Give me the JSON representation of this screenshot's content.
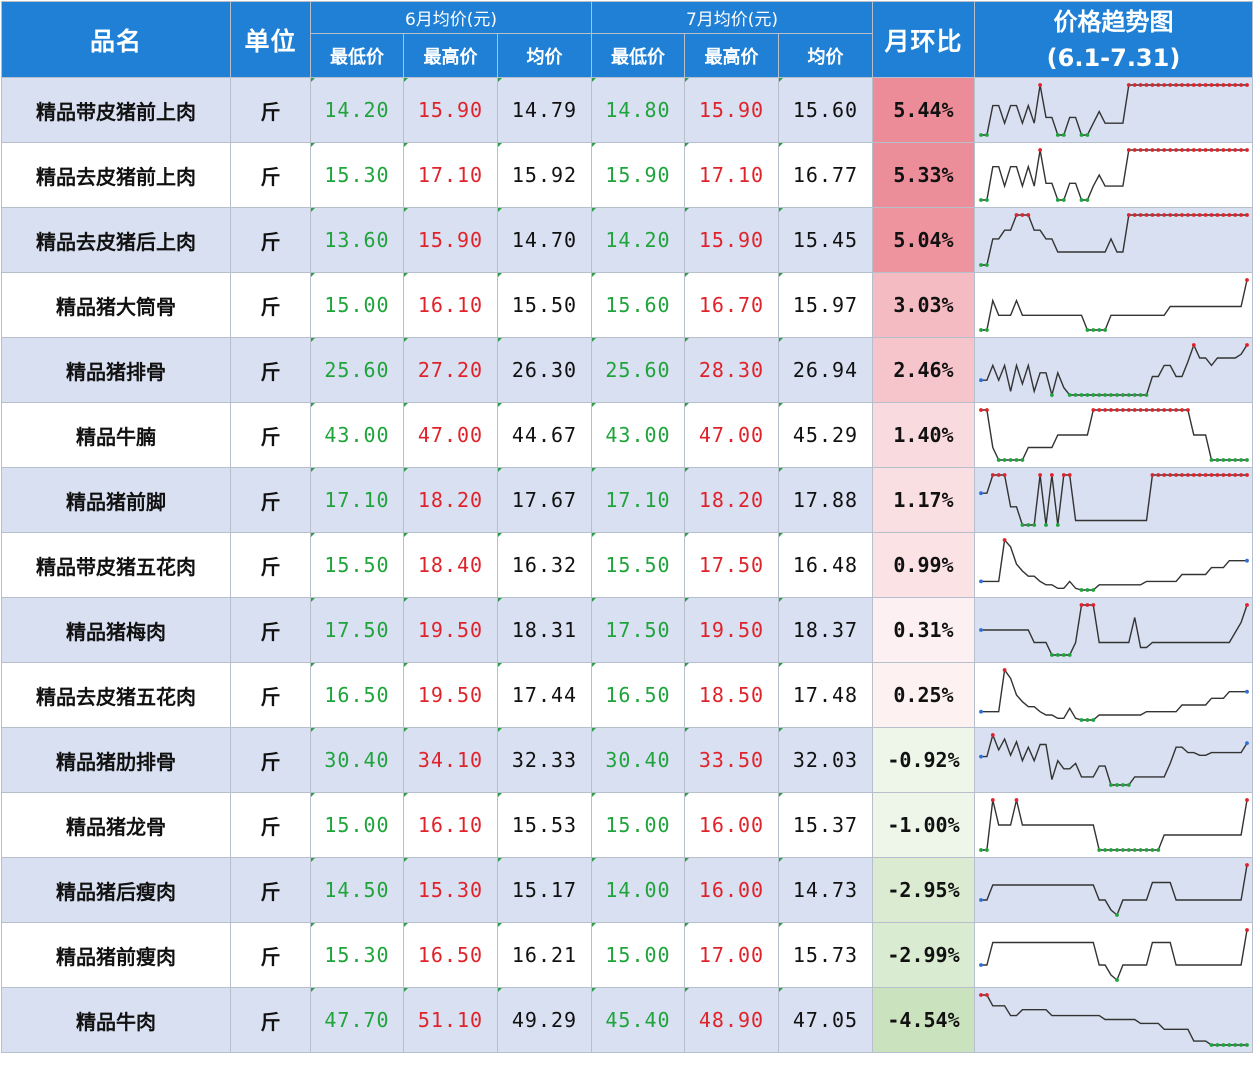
{
  "header": {
    "name": "品名",
    "unit": "单位",
    "june": "6月均价(元)",
    "july": "7月均价(元)",
    "mom": "月环比",
    "trend_line1": "价格趋势图",
    "trend_line2": "(6.1-7.31)",
    "min": "最低价",
    "max": "最高价",
    "avg": "均价"
  },
  "colors": {
    "header_bg": "#1f80d6",
    "low": "#1fa43c",
    "high": "#e0232b",
    "row_band": "#d9e0f1",
    "pos": "#f3a7b0",
    "neg": "#dcebd6"
  },
  "rows": [
    {
      "name": "精品带皮猪前上肉",
      "unit": "斤",
      "jun_min": "14.20",
      "jun_max": "15.90",
      "jun_avg": "14.79",
      "jul_min": "14.80",
      "jul_max": "15.90",
      "jul_avg": "15.60",
      "mom": "5.44%",
      "mom_value": 5.44,
      "trend": [
        14.2,
        14.2,
        15.2,
        15.2,
        14.6,
        15.2,
        15.2,
        14.6,
        15.2,
        14.6,
        15.9,
        14.8,
        14.8,
        14.2,
        14.2,
        14.8,
        14.8,
        14.2,
        14.2,
        14.6,
        15.0,
        14.6,
        14.6,
        14.6,
        14.6,
        15.9,
        15.9,
        15.9,
        15.9,
        15.9,
        15.9,
        15.9,
        15.9,
        15.9,
        15.9,
        15.9,
        15.9,
        15.9,
        15.9,
        15.9,
        15.9,
        15.9,
        15.9,
        15.9,
        15.9,
        15.9
      ]
    },
    {
      "name": "精品去皮猪前上肉",
      "unit": "斤",
      "jun_min": "15.30",
      "jun_max": "17.10",
      "jun_avg": "15.92",
      "jul_min": "15.90",
      "jul_max": "17.10",
      "jul_avg": "16.77",
      "mom": "5.33%",
      "mom_value": 5.33,
      "trend": [
        15.3,
        15.3,
        16.5,
        16.5,
        15.8,
        16.5,
        16.5,
        15.8,
        16.5,
        15.8,
        17.1,
        15.9,
        15.9,
        15.3,
        15.3,
        15.9,
        15.9,
        15.3,
        15.3,
        15.8,
        16.2,
        15.8,
        15.8,
        15.8,
        15.8,
        17.1,
        17.1,
        17.1,
        17.1,
        17.1,
        17.1,
        17.1,
        17.1,
        17.1,
        17.1,
        17.1,
        17.1,
        17.1,
        17.1,
        17.1,
        17.1,
        17.1,
        17.1,
        17.1,
        17.1,
        17.1
      ]
    },
    {
      "name": "精品去皮猪后上肉",
      "unit": "斤",
      "jun_min": "13.60",
      "jun_max": "15.90",
      "jun_avg": "14.70",
      "jul_min": "14.20",
      "jul_max": "15.90",
      "jul_avg": "15.45",
      "mom": "5.04%",
      "mom_value": 5.04,
      "trend": [
        13.6,
        13.6,
        14.8,
        14.8,
        15.2,
        15.2,
        15.9,
        15.9,
        15.9,
        15.2,
        15.2,
        14.8,
        14.8,
        14.2,
        14.2,
        14.2,
        14.2,
        14.2,
        14.2,
        14.2,
        14.2,
        14.2,
        14.8,
        14.2,
        14.2,
        15.9,
        15.9,
        15.9,
        15.9,
        15.9,
        15.9,
        15.9,
        15.9,
        15.9,
        15.9,
        15.9,
        15.9,
        15.9,
        15.9,
        15.9,
        15.9,
        15.9,
        15.9,
        15.9,
        15.9,
        15.9
      ]
    },
    {
      "name": "精品猪大筒骨",
      "unit": "斤",
      "jun_min": "15.00",
      "jun_max": "16.10",
      "jun_avg": "15.50",
      "jul_min": "15.60",
      "jul_max": "16.70",
      "jul_avg": "15.97",
      "mom": "3.03%",
      "mom_value": 3.03,
      "trend": [
        15.0,
        15.0,
        16.0,
        15.5,
        15.5,
        15.5,
        16.0,
        15.5,
        15.5,
        15.5,
        15.5,
        15.5,
        15.5,
        15.5,
        15.5,
        15.5,
        15.5,
        15.5,
        15.0,
        15.0,
        15.0,
        15.0,
        15.5,
        15.5,
        15.5,
        15.5,
        15.5,
        15.5,
        15.5,
        15.5,
        15.5,
        15.5,
        15.8,
        15.8,
        15.8,
        15.8,
        15.8,
        15.8,
        15.8,
        15.8,
        15.8,
        15.8,
        15.8,
        15.8,
        15.8,
        16.7
      ]
    },
    {
      "name": "精品猪排骨",
      "unit": "斤",
      "jun_min": "25.60",
      "jun_max": "27.20",
      "jun_avg": "26.30",
      "jul_min": "25.60",
      "jul_max": "28.30",
      "jul_avg": "26.94",
      "mom": "2.46%",
      "mom_value": 2.46,
      "trend": [
        26.4,
        26.4,
        27.2,
        26.4,
        27.2,
        25.8,
        27.2,
        26.2,
        27.2,
        25.8,
        26.8,
        26.8,
        25.6,
        26.8,
        26.0,
        25.6,
        25.6,
        25.6,
        25.6,
        25.6,
        25.6,
        25.6,
        25.6,
        25.6,
        25.6,
        25.6,
        25.6,
        25.6,
        25.6,
        26.6,
        26.6,
        27.2,
        27.2,
        26.6,
        26.6,
        27.4,
        28.3,
        27.6,
        27.6,
        27.2,
        27.6,
        27.6,
        27.6,
        27.6,
        27.8,
        28.3
      ]
    },
    {
      "name": "精品牛腩",
      "unit": "斤",
      "jun_min": "43.00",
      "jun_max": "47.00",
      "jun_avg": "44.67",
      "jul_min": "43.00",
      "jul_max": "47.00",
      "jul_avg": "45.29",
      "mom": "1.40%",
      "mom_value": 1.4,
      "trend": [
        47.0,
        47.0,
        44.0,
        43.0,
        43.0,
        43.0,
        43.0,
        43.0,
        44.0,
        44.0,
        44.0,
        44.0,
        44.0,
        45.0,
        45.0,
        45.0,
        45.0,
        45.0,
        45.0,
        47.0,
        47.0,
        47.0,
        47.0,
        47.0,
        47.0,
        47.0,
        47.0,
        47.0,
        47.0,
        47.0,
        47.0,
        47.0,
        47.0,
        47.0,
        47.0,
        47.0,
        45.0,
        45.0,
        45.0,
        43.0,
        43.0,
        43.0,
        43.0,
        43.0,
        43.0,
        43.0
      ]
    },
    {
      "name": "精品猪前脚",
      "unit": "斤",
      "jun_min": "17.10",
      "jun_max": "18.20",
      "jun_avg": "17.67",
      "jul_min": "17.10",
      "jul_max": "18.20",
      "jul_avg": "17.88",
      "mom": "1.17%",
      "mom_value": 1.17,
      "trend": [
        17.8,
        17.8,
        18.2,
        18.2,
        18.2,
        17.5,
        17.5,
        17.1,
        17.1,
        17.1,
        18.2,
        17.1,
        18.2,
        17.1,
        18.2,
        18.2,
        17.2,
        17.2,
        17.2,
        17.2,
        17.2,
        17.2,
        17.2,
        17.2,
        17.2,
        17.2,
        17.2,
        17.2,
        17.2,
        18.2,
        18.2,
        18.2,
        18.2,
        18.2,
        18.2,
        18.2,
        18.2,
        18.2,
        18.2,
        18.2,
        18.2,
        18.2,
        18.2,
        18.2,
        18.2,
        18.2
      ]
    },
    {
      "name": "精品带皮猪五花肉",
      "unit": "斤",
      "jun_min": "15.50",
      "jun_max": "18.40",
      "jun_avg": "16.32",
      "jul_min": "15.50",
      "jul_max": "17.50",
      "jul_avg": "16.48",
      "mom": "0.99%",
      "mom_value": 0.99,
      "trend": [
        16.0,
        16.0,
        16.0,
        16.0,
        18.4,
        18.0,
        17.0,
        16.6,
        16.3,
        16.3,
        16.0,
        15.8,
        15.8,
        15.6,
        15.6,
        16.0,
        15.6,
        15.5,
        15.5,
        15.5,
        15.8,
        15.8,
        15.8,
        15.8,
        15.8,
        15.8,
        15.8,
        15.8,
        16.0,
        16.0,
        16.0,
        16.0,
        16.0,
        16.0,
        16.4,
        16.4,
        16.4,
        16.4,
        16.4,
        16.8,
        16.8,
        16.8,
        17.2,
        17.2,
        17.2,
        17.2
      ]
    },
    {
      "name": "精品猪梅肉",
      "unit": "斤",
      "jun_min": "17.50",
      "jun_max": "19.50",
      "jun_avg": "18.31",
      "jul_min": "17.50",
      "jul_max": "19.50",
      "jul_avg": "18.37",
      "mom": "0.31%",
      "mom_value": 0.31,
      "trend": [
        18.5,
        18.5,
        18.5,
        18.5,
        18.5,
        18.5,
        18.5,
        18.5,
        18.5,
        18.0,
        18.0,
        18.0,
        17.5,
        17.5,
        17.5,
        17.5,
        18.0,
        19.5,
        19.5,
        19.5,
        18.0,
        18.0,
        18.0,
        18.0,
        18.0,
        18.0,
        19.0,
        17.8,
        17.8,
        18.0,
        18.0,
        18.0,
        18.0,
        18.0,
        18.0,
        18.0,
        18.0,
        18.0,
        18.0,
        18.0,
        18.0,
        18.0,
        18.0,
        18.4,
        18.8,
        19.5
      ]
    },
    {
      "name": "精品去皮猪五花肉",
      "unit": "斤",
      "jun_min": "16.50",
      "jun_max": "19.50",
      "jun_avg": "17.44",
      "jul_min": "16.50",
      "jul_max": "18.50",
      "jul_avg": "17.48",
      "mom": "0.25%",
      "mom_value": 0.25,
      "trend": [
        17.0,
        17.0,
        17.0,
        17.0,
        19.5,
        19.0,
        18.0,
        17.6,
        17.3,
        17.3,
        17.0,
        16.8,
        16.8,
        16.6,
        16.6,
        17.2,
        16.6,
        16.5,
        16.5,
        16.5,
        16.8,
        16.8,
        16.8,
        16.8,
        16.8,
        16.8,
        16.8,
        16.8,
        17.0,
        17.0,
        17.0,
        17.0,
        17.0,
        17.0,
        17.4,
        17.4,
        17.4,
        17.4,
        17.4,
        17.8,
        17.8,
        17.8,
        18.2,
        18.2,
        18.2,
        18.2
      ]
    },
    {
      "name": "精品猪肋排骨",
      "unit": "斤",
      "jun_min": "30.40",
      "jun_max": "34.10",
      "jun_avg": "32.33",
      "jul_min": "30.40",
      "jul_max": "33.50",
      "jul_avg": "32.03",
      "mom": "-0.92%",
      "mom_value": -0.92,
      "trend": [
        32.5,
        32.5,
        34.1,
        33.0,
        33.8,
        32.6,
        33.6,
        32.2,
        33.2,
        32.2,
        33.4,
        33.4,
        30.8,
        32.2,
        31.6,
        31.6,
        32.0,
        31.0,
        31.0,
        31.0,
        31.8,
        31.8,
        30.4,
        30.4,
        30.4,
        30.4,
        31.0,
        31.0,
        31.0,
        31.0,
        31.0,
        31.0,
        32.0,
        33.2,
        33.2,
        32.8,
        32.8,
        32.6,
        32.6,
        32.8,
        32.8,
        32.8,
        32.8,
        32.8,
        32.8,
        33.5
      ]
    },
    {
      "name": "精品猪龙骨",
      "unit": "斤",
      "jun_min": "15.00",
      "jun_max": "16.10",
      "jun_avg": "15.53",
      "jul_min": "15.00",
      "jul_max": "16.00",
      "jul_avg": "15.37",
      "mom": "-1.00%",
      "mom_value": -1.0,
      "trend": [
        15.0,
        15.0,
        16.0,
        15.5,
        15.5,
        15.5,
        16.0,
        15.5,
        15.5,
        15.5,
        15.5,
        15.5,
        15.5,
        15.5,
        15.5,
        15.5,
        15.5,
        15.5,
        15.5,
        15.5,
        15.0,
        15.0,
        15.0,
        15.0,
        15.0,
        15.0,
        15.0,
        15.0,
        15.0,
        15.0,
        15.0,
        15.3,
        15.3,
        15.3,
        15.3,
        15.3,
        15.3,
        15.3,
        15.3,
        15.3,
        15.3,
        15.3,
        15.3,
        15.3,
        15.3,
        16.0
      ]
    },
    {
      "name": "精品猪后瘦肉",
      "unit": "斤",
      "jun_min": "14.50",
      "jun_max": "15.30",
      "jun_avg": "15.17",
      "jul_min": "14.00",
      "jul_max": "16.00",
      "jul_avg": "14.73",
      "mom": "-2.95%",
      "mom_value": -2.95,
      "trend": [
        14.6,
        14.6,
        15.2,
        15.2,
        15.2,
        15.2,
        15.2,
        15.2,
        15.2,
        15.2,
        15.2,
        15.2,
        15.2,
        15.2,
        15.2,
        15.2,
        15.2,
        15.2,
        15.2,
        15.2,
        14.6,
        14.6,
        14.2,
        14.0,
        14.6,
        14.6,
        14.6,
        14.6,
        14.6,
        15.3,
        15.3,
        15.3,
        15.3,
        14.6,
        14.6,
        14.6,
        14.6,
        14.6,
        14.6,
        14.6,
        14.6,
        14.6,
        14.6,
        14.6,
        14.6,
        16.0
      ]
    },
    {
      "name": "精品猪前瘦肉",
      "unit": "斤",
      "jun_min": "15.30",
      "jun_max": "16.50",
      "jun_avg": "16.21",
      "jul_min": "15.00",
      "jul_max": "17.00",
      "jul_avg": "15.73",
      "mom": "-2.99%",
      "mom_value": -2.99,
      "trend": [
        15.6,
        15.6,
        16.5,
        16.5,
        16.5,
        16.5,
        16.5,
        16.5,
        16.5,
        16.5,
        16.5,
        16.5,
        16.5,
        16.5,
        16.5,
        16.5,
        16.5,
        16.5,
        16.5,
        16.5,
        15.6,
        15.6,
        15.2,
        15.0,
        15.6,
        15.6,
        15.6,
        15.6,
        15.6,
        16.5,
        16.5,
        16.5,
        16.5,
        15.6,
        15.6,
        15.6,
        15.6,
        15.6,
        15.6,
        15.6,
        15.6,
        15.6,
        15.6,
        15.6,
        15.6,
        17.0
      ]
    },
    {
      "name": "精品牛肉",
      "unit": "斤",
      "jun_min": "47.70",
      "jun_max": "51.10",
      "jun_avg": "49.29",
      "jul_min": "45.40",
      "jul_max": "48.90",
      "jul_avg": "47.05",
      "mom": "-4.54%",
      "mom_value": -4.54,
      "trend": [
        51.1,
        51.1,
        50.0,
        50.0,
        50.0,
        49.0,
        49.0,
        49.6,
        49.6,
        49.6,
        49.6,
        49.6,
        49.0,
        49.0,
        49.0,
        49.0,
        49.0,
        49.0,
        49.0,
        49.0,
        49.0,
        48.6,
        48.6,
        48.6,
        48.6,
        48.6,
        48.6,
        48.2,
        48.2,
        48.2,
        48.2,
        47.6,
        47.6,
        47.6,
        47.6,
        47.6,
        46.4,
        46.4,
        46.4,
        46.0,
        46.0,
        46.0,
        46.0,
        46.0,
        46.0,
        46.0
      ]
    }
  ]
}
